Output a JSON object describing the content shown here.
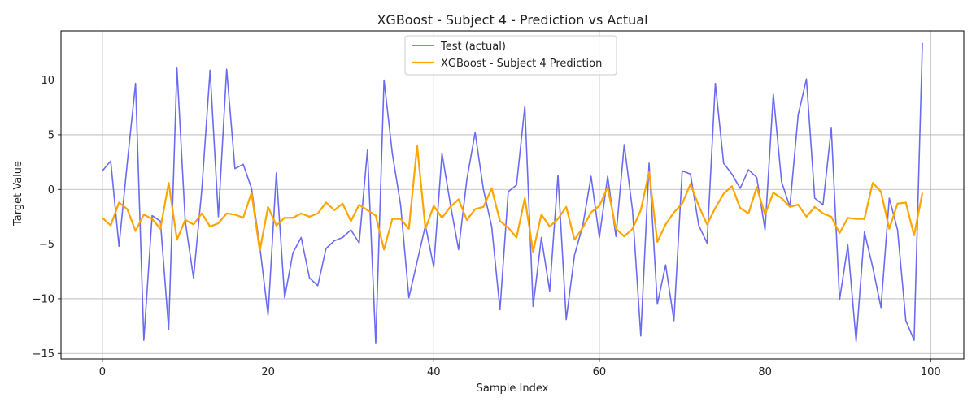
{
  "chart_data": {
    "type": "line",
    "title": "XGBoost - Subject 4 - Prediction vs Actual",
    "xlabel": "Sample Index",
    "ylabel": "Target Value",
    "xlim": [
      -5,
      104
    ],
    "ylim": [
      -15.5,
      14.5
    ],
    "xticks": [
      0,
      20,
      40,
      60,
      80,
      100
    ],
    "yticks": [
      -15,
      -10,
      -5,
      0,
      5,
      10
    ],
    "xtick_labels": [
      "0",
      "20",
      "40",
      "60",
      "80",
      "100"
    ],
    "ytick_labels": [
      "−15",
      "−10",
      "−5",
      "0",
      "5",
      "10"
    ],
    "grid": true,
    "legend_position": "upper center",
    "series": [
      {
        "name": "Test (actual)",
        "color": "#5b5bef",
        "values": [
          1.7,
          2.6,
          -5.2,
          2.4,
          9.7,
          -13.8,
          -2.4,
          -2.9,
          -12.8,
          11.1,
          -2.9,
          -8.1,
          0.0,
          10.9,
          -2.5,
          11.0,
          1.9,
          2.3,
          0.1,
          -5.2,
          -11.5,
          1.5,
          -9.9,
          -5.8,
          -4.4,
          -8.1,
          -8.8,
          -5.4,
          -4.7,
          -4.4,
          -3.7,
          -4.9,
          3.6,
          -14.1,
          10.0,
          3.3,
          -1.4,
          -9.9,
          -6.6,
          -3.3,
          -7.1,
          3.3,
          -1.3,
          -5.5,
          0.9,
          5.2,
          0.0,
          -3.4,
          -11.0,
          -0.2,
          0.4,
          7.6,
          -10.7,
          -4.4,
          -9.3,
          1.3,
          -11.9,
          -6.0,
          -3.3,
          1.2,
          -4.4,
          1.2,
          -4.3,
          4.1,
          -1.9,
          -13.4,
          2.4,
          -10.5,
          -6.9,
          -12.0,
          1.7,
          1.4,
          -3.3,
          -4.9,
          9.7,
          2.4,
          1.4,
          0.1,
          1.8,
          1.1,
          -3.7,
          8.7,
          0.7,
          -1.6,
          6.8,
          10.1,
          -0.8,
          -1.4,
          5.6,
          -10.1,
          -5.1,
          -13.9,
          -3.9,
          -7.1,
          -10.8,
          -0.8,
          -3.7,
          -12.0,
          -13.8,
          13.4
        ]
      },
      {
        "name": "XGBoost - Subject 4 Prediction",
        "color": "#ffa500",
        "values": [
          -2.6,
          -3.3,
          -1.2,
          -1.8,
          -3.8,
          -2.3,
          -2.7,
          -3.6,
          0.6,
          -4.6,
          -2.8,
          -3.2,
          -2.2,
          -3.4,
          -3.1,
          -2.2,
          -2.3,
          -2.6,
          -0.3,
          -5.6,
          -1.6,
          -3.3,
          -2.6,
          -2.6,
          -2.2,
          -2.5,
          -2.2,
          -1.2,
          -1.9,
          -1.3,
          -2.9,
          -1.4,
          -1.9,
          -2.4,
          -5.5,
          -2.7,
          -2.7,
          -3.6,
          4.0,
          -3.6,
          -1.5,
          -2.6,
          -1.6,
          -0.9,
          -2.8,
          -1.8,
          -1.6,
          0.1,
          -2.9,
          -3.5,
          -4.4,
          -0.8,
          -5.7,
          -2.3,
          -3.4,
          -2.7,
          -1.6,
          -4.6,
          -3.5,
          -2.1,
          -1.5,
          0.2,
          -3.6,
          -4.3,
          -3.6,
          -1.9,
          1.6,
          -4.8,
          -3.2,
          -2.1,
          -1.3,
          0.5,
          -1.5,
          -3.2,
          -1.7,
          -0.4,
          0.3,
          -1.7,
          -2.2,
          0.2,
          -2.3,
          -0.3,
          -0.8,
          -1.6,
          -1.4,
          -2.5,
          -1.6,
          -2.2,
          -2.5,
          -4.0,
          -2.6,
          -2.7,
          -2.7,
          0.6,
          -0.2,
          -3.6,
          -1.3,
          -1.2,
          -4.2,
          -0.3
        ]
      }
    ]
  }
}
